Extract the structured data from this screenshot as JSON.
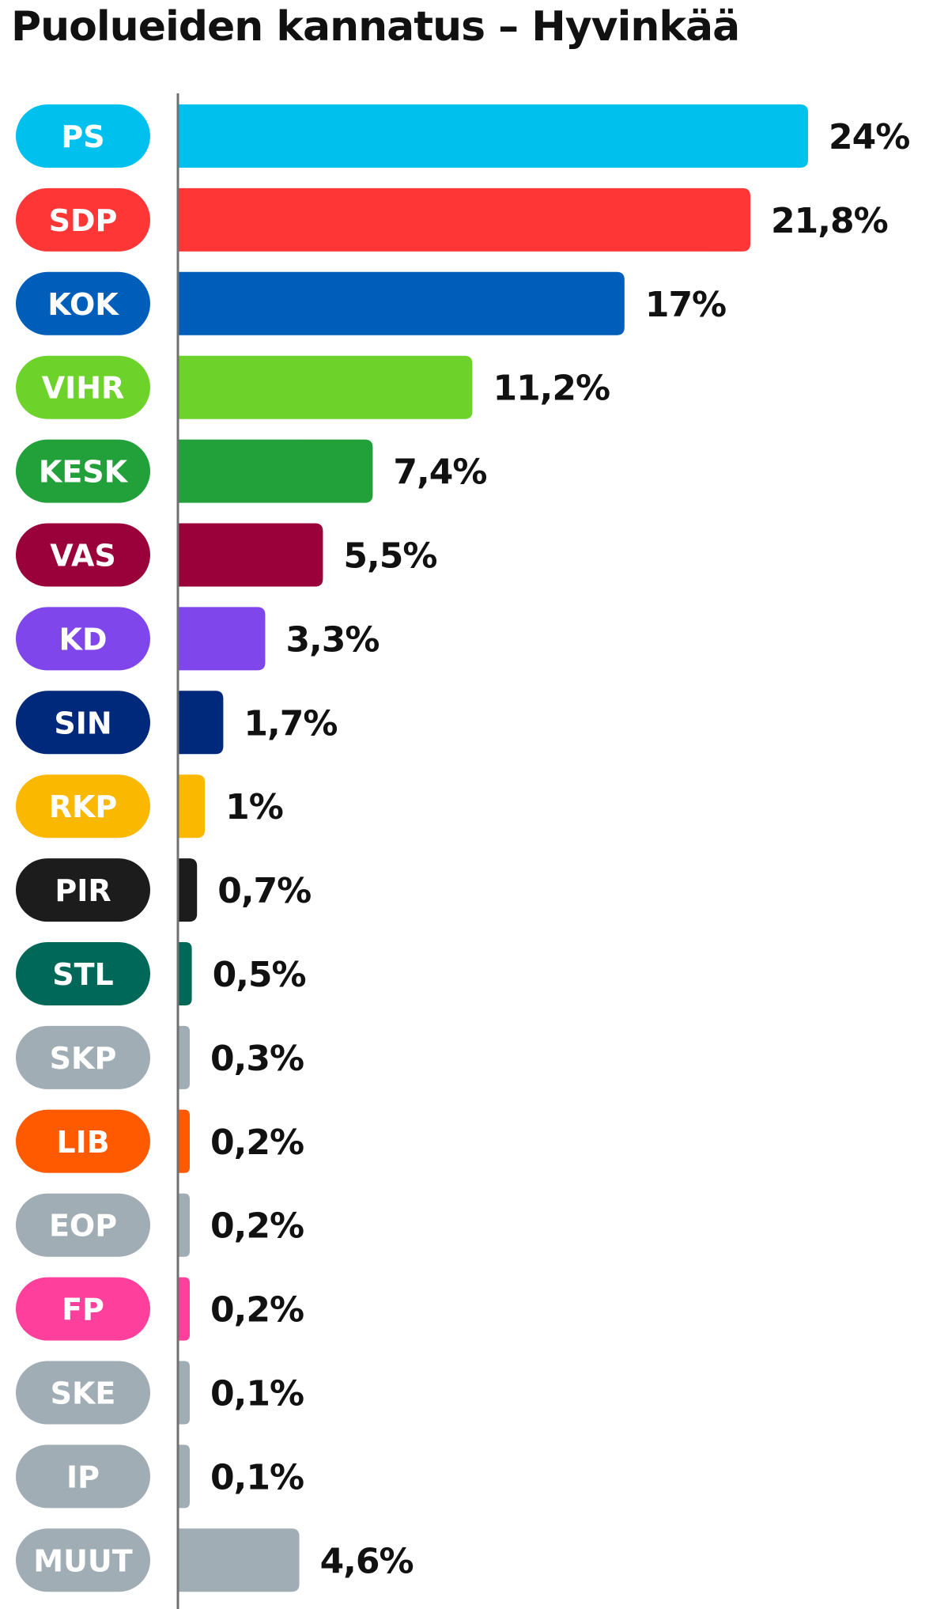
{
  "chart_data": {
    "type": "bar",
    "orientation": "horizontal",
    "title": "Puolueiden kannatus – Hyvinkää",
    "xlabel": "",
    "ylabel": "",
    "xlim": [
      0,
      24
    ],
    "grid": false,
    "legend": "none",
    "categories": [
      "PS",
      "SDP",
      "KOK",
      "VIHR",
      "KESK",
      "VAS",
      "KD",
      "SIN",
      "RKP",
      "PIR",
      "STL",
      "SKP",
      "LIB",
      "EOP",
      "FP",
      "SKE",
      "IP",
      "MUUT"
    ],
    "values": [
      24,
      21.8,
      17,
      11.2,
      7.4,
      5.5,
      3.3,
      1.7,
      1,
      0.7,
      0.5,
      0.3,
      0.2,
      0.2,
      0.2,
      0.1,
      0.1,
      4.6
    ],
    "value_labels": [
      "24%",
      "21,8%",
      "17%",
      "11,2%",
      "7,4%",
      "5,5%",
      "3,3%",
      "1,7%",
      "1%",
      "0,7%",
      "0,5%",
      "0,3%",
      "0,2%",
      "0,2%",
      "0,2%",
      "0,1%",
      "0,1%",
      "4,6%"
    ],
    "colors": [
      "#00c1ee",
      "#ff3636",
      "#005ebb",
      "#6dd32b",
      "#22a03a",
      "#9a003a",
      "#7f46eb",
      "#00287b",
      "#fbb800",
      "#1c1c1c",
      "#006858",
      "#a0adb4",
      "#ff5a00",
      "#a0adb4",
      "#ff3f9c",
      "#a0adb4",
      "#a0adb4",
      "#a0adb4"
    ],
    "label_colors": [
      "#ffffff",
      "#ffffff",
      "#ffffff",
      "#ffffff",
      "#ffffff",
      "#ffffff",
      "#ffffff",
      "#ffffff",
      "#ffffff",
      "#ffffff",
      "#ffffff",
      "#ffffff",
      "#ffffff",
      "#ffffff",
      "#ffffff",
      "#ffffff",
      "#ffffff",
      "#ffffff"
    ],
    "axis_color": "#707070"
  }
}
